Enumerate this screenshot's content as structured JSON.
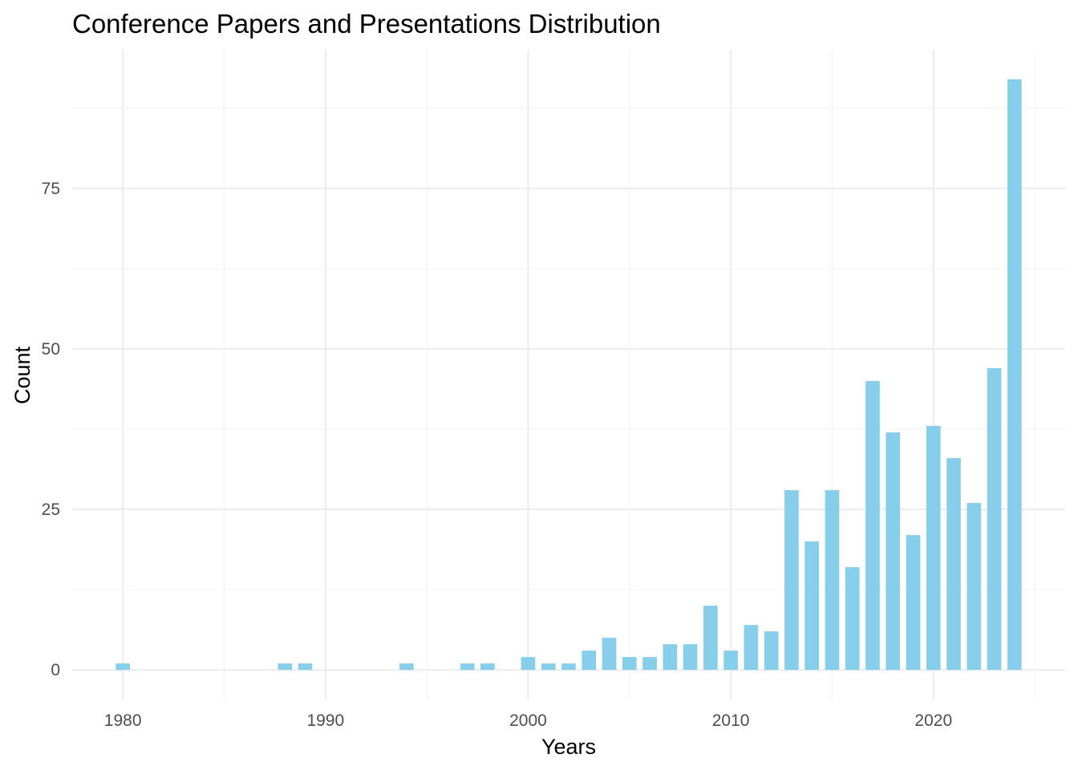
{
  "chart_data": {
    "type": "bar",
    "title": "Conference Papers and Presentations Distribution",
    "xlabel": "Years",
    "ylabel": "Count",
    "x": [
      1980,
      1988,
      1989,
      1994,
      1997,
      1998,
      2000,
      2001,
      2002,
      2003,
      2004,
      2005,
      2006,
      2007,
      2008,
      2009,
      2010,
      2011,
      2012,
      2013,
      2014,
      2015,
      2016,
      2017,
      2018,
      2019,
      2020,
      2021,
      2022,
      2023,
      2024
    ],
    "values": [
      1,
      1,
      1,
      1,
      1,
      1,
      2,
      1,
      1,
      3,
      5,
      2,
      2,
      4,
      4,
      10,
      3,
      7,
      6,
      28,
      20,
      28,
      16,
      45,
      37,
      21,
      38,
      33,
      26,
      47,
      92
    ],
    "xlim": [
      1977.5,
      2026.5
    ],
    "ylim": [
      -4.6,
      96.6
    ],
    "x_ticks": [
      1980,
      1990,
      2000,
      2010,
      2020
    ],
    "y_ticks": [
      0,
      25,
      50,
      75
    ],
    "bar_color": "#87CEEB",
    "grid": true,
    "legend": "none"
  }
}
